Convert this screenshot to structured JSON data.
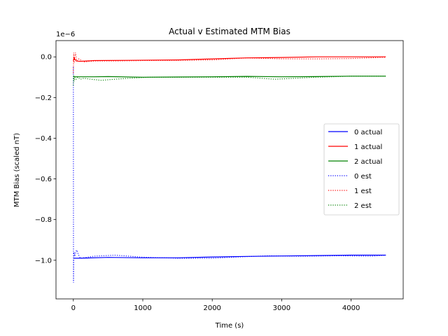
{
  "chart_data": {
    "type": "line",
    "title": "Actual v Estimated MTM Bias",
    "xlabel": "Time (s)",
    "ylabel": "MTM Bias (scaled nT)",
    "y_offset_text": "1e−6",
    "xlim": [
      -250,
      4750
    ],
    "ylim": [
      -1.19,
      0.08
    ],
    "xticks": [
      0,
      1000,
      2000,
      3000,
      4000
    ],
    "xtick_labels": [
      "0",
      "1000",
      "2000",
      "3000",
      "4000"
    ],
    "yticks": [
      0.0,
      -0.2,
      -0.4,
      -0.6,
      -0.8,
      -1.0
    ],
    "ytick_labels": [
      "0.0",
      "−0.2",
      "−0.4",
      "−0.6",
      "−0.8",
      "−1.0"
    ],
    "grid": false,
    "legend_position": "center-right",
    "series": [
      {
        "name": "0 actual",
        "color": "#0000ff",
        "style": "solid",
        "x": [
          0,
          20,
          60,
          200,
          500,
          1000,
          1500,
          2000,
          2500,
          3000,
          3500,
          4000,
          4500
        ],
        "y": [
          -0.99,
          -0.99,
          -0.99,
          -0.989,
          -0.986,
          -0.988,
          -0.988,
          -0.984,
          -0.981,
          -0.979,
          -0.977,
          -0.975,
          -0.975
        ]
      },
      {
        "name": "1 actual",
        "color": "#ff0000",
        "style": "solid",
        "x": [
          0,
          10,
          40,
          100,
          300,
          800,
          1500,
          2000,
          2500,
          3000,
          3500,
          4000,
          4500
        ],
        "y": [
          -0.02,
          -0.005,
          -0.02,
          -0.022,
          -0.018,
          -0.017,
          -0.015,
          -0.01,
          -0.005,
          -0.003,
          0.0,
          0.0,
          0.0
        ]
      },
      {
        "name": "2 actual",
        "color": "#008000",
        "style": "solid",
        "x": [
          0,
          20,
          100,
          300,
          500,
          1000,
          1500,
          2000,
          2500,
          3000,
          3500,
          4000,
          4500
        ],
        "y": [
          -0.098,
          -0.098,
          -0.098,
          -0.098,
          -0.097,
          -0.1,
          -0.099,
          -0.098,
          -0.096,
          -0.098,
          -0.097,
          -0.095,
          -0.095
        ]
      },
      {
        "name": "0 est",
        "color": "#0000ff",
        "style": "dotted",
        "x": [
          0,
          2,
          5,
          10,
          20,
          40,
          50,
          70,
          100,
          200,
          300,
          600,
          1000,
          1500,
          2000,
          2300,
          2800,
          3300,
          3800,
          4300,
          4500
        ],
        "y": [
          -0.05,
          -1.11,
          -0.99,
          -0.96,
          -0.98,
          -0.955,
          -0.95,
          -0.97,
          -0.99,
          -0.985,
          -0.98,
          -0.975,
          -0.985,
          -0.99,
          -0.99,
          -0.985,
          -0.978,
          -0.98,
          -0.978,
          -0.98,
          -0.975
        ]
      },
      {
        "name": "1 est",
        "color": "#ff0000",
        "style": "dotted",
        "x": [
          0,
          5,
          10,
          20,
          30,
          50,
          80,
          150,
          300,
          600,
          1000,
          1500,
          2000,
          2500,
          3000,
          3500,
          4000,
          4500
        ],
        "y": [
          -0.08,
          0.02,
          -0.03,
          0.0,
          0.02,
          -0.02,
          -0.01,
          -0.025,
          -0.02,
          -0.02,
          -0.018,
          -0.017,
          -0.015,
          -0.005,
          -0.01,
          -0.01,
          -0.008,
          -0.002
        ]
      },
      {
        "name": "2 est",
        "color": "#008000",
        "style": "dotted",
        "x": [
          0,
          5,
          10,
          20,
          40,
          60,
          100,
          150,
          250,
          400,
          600,
          800,
          1100,
          1500,
          2000,
          2500,
          2900,
          3200,
          3500,
          4000,
          4500
        ],
        "y": [
          -0.14,
          -0.09,
          -0.12,
          -0.1,
          -0.11,
          -0.1,
          -0.11,
          -0.105,
          -0.11,
          -0.115,
          -0.11,
          -0.105,
          -0.1,
          -0.1,
          -0.1,
          -0.1,
          -0.11,
          -0.105,
          -0.1,
          -0.095,
          -0.095
        ]
      }
    ]
  }
}
